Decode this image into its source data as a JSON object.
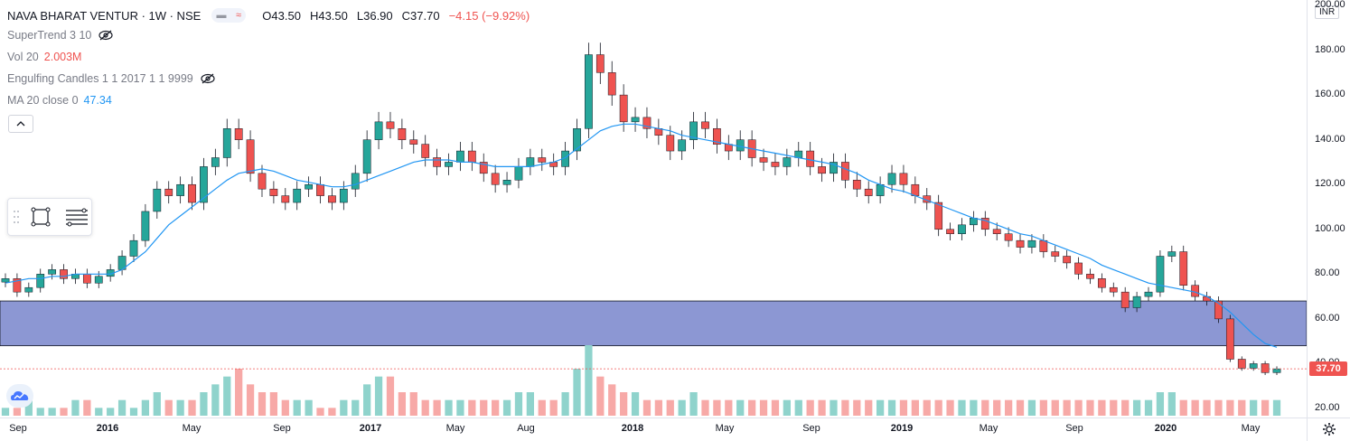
{
  "header": {
    "symbol": "NAVA BHARAT VENTUR · 1W · NSE",
    "ohlc_o": "O43.50",
    "ohlc_h": "H43.50",
    "ohlc_l": "L36.90",
    "ohlc_c": "C37.70",
    "change": "−4.15 (−9.92%)"
  },
  "indicators": {
    "supertrend": "SuperTrend 3 10",
    "vol_label": "Vol 20",
    "vol_value": "2.003M",
    "engulfing": "Engulfing Candles 1 1 2017 1 1 9999",
    "ma_label": "MA 20 close 0",
    "ma_value": "47.34"
  },
  "price_axis": {
    "currency": "INR",
    "last_price": "37.70"
  },
  "colors": {
    "up": "#26a69a",
    "down": "#ef5350",
    "ma": "#2196f3",
    "zone": "#3f51b5",
    "vol_up": "#8fd3cc",
    "vol_down": "#f7a9a7"
  },
  "chart_data": {
    "type": "candlestick",
    "title": "NAVA BHARAT VENTUR · 1W · NSE",
    "ylabel": "",
    "ylim": [
      20,
      200
    ],
    "y_ticks": [
      "200.00",
      "180.00",
      "160.00",
      "140.00",
      "120.00",
      "100.00",
      "80.00",
      "60.00",
      "40.00",
      "20.00"
    ],
    "x_ticks": [
      "Sep",
      "2016",
      "May",
      "Sep",
      "2017",
      "May",
      "Aug",
      "2018",
      "May",
      "Sep",
      "2019",
      "May",
      "Sep",
      "2020",
      "May"
    ],
    "x_ticks_bold": [
      "2016",
      "2017",
      "2018",
      "2019",
      "2020"
    ],
    "demand_zone": [
      48,
      68
    ],
    "last_price": 37.7,
    "price_path": [
      78,
      72,
      74,
      80,
      82,
      78,
      80,
      76,
      79,
      82,
      88,
      95,
      108,
      118,
      115,
      120,
      112,
      128,
      132,
      145,
      140,
      125,
      118,
      115,
      112,
      118,
      120,
      115,
      112,
      118,
      125,
      140,
      148,
      145,
      140,
      138,
      132,
      128,
      130,
      135,
      130,
      125,
      120,
      122,
      128,
      132,
      130,
      128,
      135,
      145,
      178,
      170,
      160,
      148,
      150,
      145,
      142,
      135,
      140,
      148,
      145,
      138,
      135,
      140,
      132,
      130,
      128,
      132,
      135,
      128,
      125,
      130,
      122,
      118,
      115,
      120,
      125,
      120,
      115,
      112,
      100,
      98,
      102,
      105,
      100,
      98,
      95,
      92,
      95,
      90,
      88,
      85,
      80,
      78,
      74,
      72,
      65,
      70,
      72,
      88,
      90,
      75,
      70,
      68,
      60,
      42,
      38,
      40,
      36,
      37.7
    ],
    "ma_path": [
      76,
      77,
      78,
      78,
      79,
      79,
      80,
      80,
      80,
      80,
      82,
      86,
      90,
      96,
      102,
      106,
      110,
      114,
      118,
      122,
      125,
      126,
      127,
      126,
      124,
      122,
      121,
      120,
      119,
      119,
      120,
      122,
      124,
      126,
      128,
      130,
      131,
      131,
      131,
      130,
      130,
      129,
      128,
      128,
      128,
      128,
      129,
      130,
      132,
      136,
      140,
      144,
      146,
      147,
      147,
      146,
      145,
      144,
      142,
      141,
      140,
      139,
      138,
      137,
      136,
      135,
      134,
      133,
      132,
      131,
      130,
      129,
      127,
      125,
      122,
      120,
      118,
      117,
      115,
      113,
      111,
      109,
      107,
      105,
      104,
      102,
      100,
      98,
      97,
      95,
      93,
      91,
      89,
      87,
      84,
      82,
      80,
      78,
      76,
      75,
      74,
      73,
      72,
      70,
      67,
      63,
      58,
      53,
      49,
      47.34
    ],
    "volume_path": [
      1,
      1,
      2,
      1,
      1,
      1,
      2,
      2,
      1,
      1,
      2,
      1,
      2,
      3,
      2,
      2,
      2,
      3,
      4,
      5,
      6,
      4,
      3,
      3,
      2,
      2,
      2,
      1,
      1,
      2,
      2,
      4,
      5,
      5,
      3,
      3,
      2,
      2,
      2,
      2,
      2,
      2,
      2,
      2,
      3,
      3,
      2,
      2,
      3,
      6,
      9,
      5,
      4,
      3,
      3,
      2,
      2,
      2,
      2,
      3,
      2,
      2,
      2,
      2,
      2,
      2,
      2,
      2,
      2,
      2,
      2,
      2,
      2,
      2,
      2,
      2,
      2,
      2,
      2,
      2,
      2,
      2,
      2,
      2,
      2,
      2,
      2,
      2,
      2,
      2,
      2,
      2,
      2,
      2,
      2,
      2,
      2,
      2,
      2,
      3,
      3,
      2,
      2,
      2,
      2,
      2,
      2,
      2,
      2,
      2
    ]
  }
}
